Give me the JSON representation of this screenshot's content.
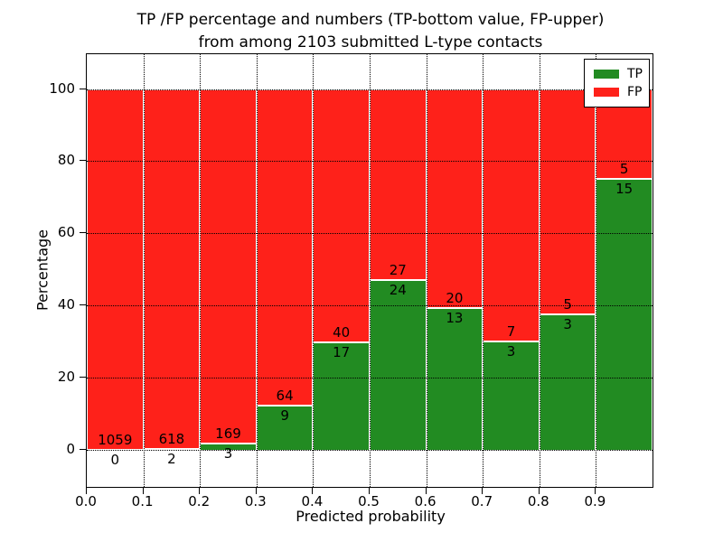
{
  "chart_data": {
    "type": "bar",
    "stacked": true,
    "title": {
      "line1": "TP /FP percentage and numbers (TP-bottom value, FP-upper)",
      "line2": "from among 2103 submitted L-type contacts"
    },
    "xlabel": "Predicted probability",
    "ylabel": "Percentage",
    "xlim": [
      0.0,
      1.0
    ],
    "ylim": [
      -10.4,
      109.6
    ],
    "x_tick_labels": [
      "0.0",
      "0.1",
      "0.2",
      "0.3",
      "0.4",
      "0.5",
      "0.6",
      "0.7",
      "0.8",
      "0.9"
    ],
    "y_tick_values": [
      0,
      20,
      40,
      60,
      80,
      100
    ],
    "grid": "dotted, drawn above bars",
    "legend_position": "upper right",
    "colors": {
      "tp": "#228b22",
      "fp": "#fe211a",
      "bar_edge": "#ffffff",
      "grid": "#000000"
    },
    "legend": [
      {
        "label": "TP",
        "color": "#228b22"
      },
      {
        "label": "FP",
        "color": "#fe211a"
      }
    ],
    "note": "bars stack to 100%; TP count label below green top edge, FP count label above it",
    "bins": [
      {
        "x0": 0.0,
        "x1": 0.1,
        "tp": 0,
        "fp": 1059
      },
      {
        "x0": 0.1,
        "x1": 0.2,
        "tp": 2,
        "fp": 618
      },
      {
        "x0": 0.2,
        "x1": 0.3,
        "tp": 3,
        "fp": 169
      },
      {
        "x0": 0.3,
        "x1": 0.4,
        "tp": 9,
        "fp": 64
      },
      {
        "x0": 0.4,
        "x1": 0.5,
        "tp": 17,
        "fp": 40
      },
      {
        "x0": 0.5,
        "x1": 0.6,
        "tp": 24,
        "fp": 27
      },
      {
        "x0": 0.6,
        "x1": 0.7,
        "tp": 13,
        "fp": 20
      },
      {
        "x0": 0.7,
        "x1": 0.8,
        "tp": 3,
        "fp": 7
      },
      {
        "x0": 0.8,
        "x1": 0.9,
        "tp": 3,
        "fp": 5
      },
      {
        "x0": 0.9,
        "x1": 1.0,
        "tp": 15,
        "fp": 5
      }
    ]
  }
}
